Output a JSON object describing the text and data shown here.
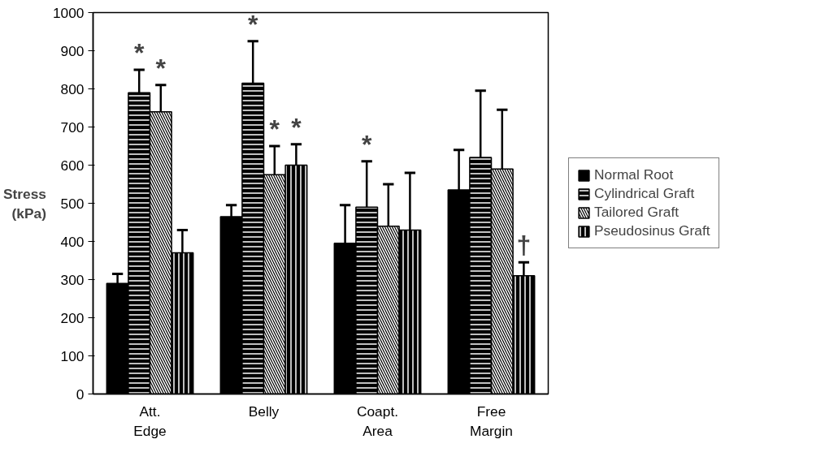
{
  "chart_data": {
    "type": "bar",
    "ylabel": "Stress\n(kPa)",
    "categories": [
      "Att.\nEdge",
      "Belly",
      "Coapt.\nArea",
      "Free\nMargin"
    ],
    "series": [
      {
        "name": "Normal Root",
        "color": "#000000",
        "values": [
          290,
          465,
          395,
          535
        ],
        "errors": [
          25,
          30,
          100,
          105
        ]
      },
      {
        "name": "Cylindrical Graft",
        "color": "#000000",
        "values": [
          790,
          815,
          490,
          620
        ],
        "errors": [
          60,
          110,
          120,
          175
        ],
        "value_labels": [
          "*",
          "*",
          "*",
          null
        ]
      },
      {
        "name": "Tailored Graft",
        "color": "#000000",
        "values": [
          740,
          575,
          440,
          590
        ],
        "errors": [
          70,
          75,
          110,
          155
        ],
        "value_labels": [
          "*",
          "*",
          null,
          null
        ]
      },
      {
        "name": "Pseudosinus Graft",
        "color": "#000000",
        "values": [
          370,
          600,
          430,
          310
        ],
        "errors": [
          60,
          55,
          150,
          35
        ],
        "value_labels": [
          null,
          "*",
          null,
          "†"
        ]
      }
    ],
    "ylim": [
      0,
      1000
    ],
    "yticks": [
      0,
      100,
      200,
      300,
      400,
      500,
      600,
      700,
      800,
      900,
      1000
    ],
    "grid": false,
    "legend": "right"
  }
}
